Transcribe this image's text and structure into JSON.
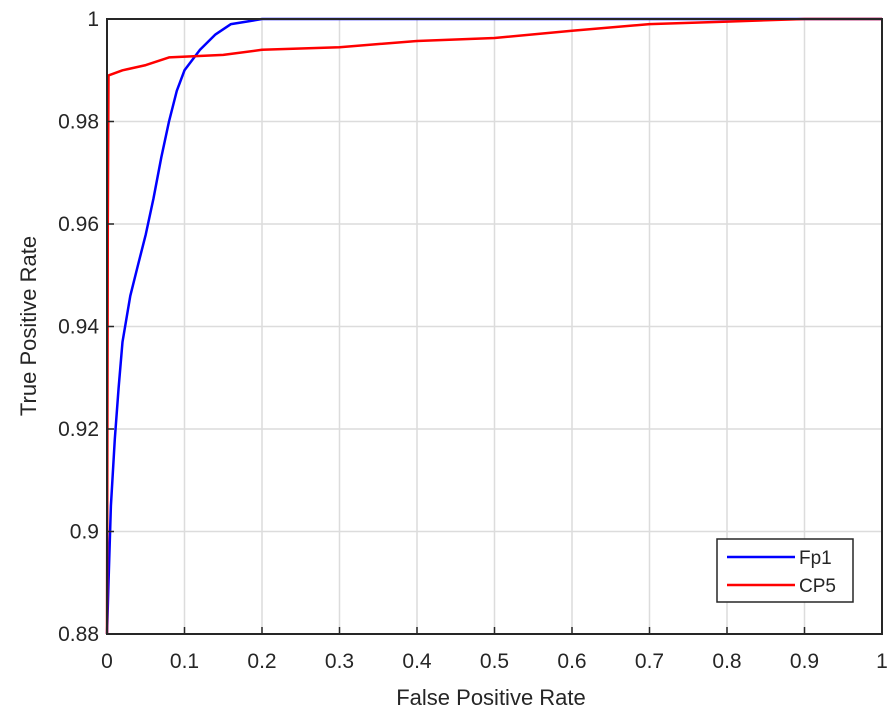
{
  "chart_data": {
    "type": "line",
    "title": "",
    "xlabel": "False Positive Rate",
    "ylabel": "True Positive Rate",
    "xlim": [
      0,
      1
    ],
    "ylim": [
      0.88,
      1
    ],
    "xticks": [
      "0",
      "0.1",
      "0.2",
      "0.3",
      "0.4",
      "0.5",
      "0.6",
      "0.7",
      "0.8",
      "0.9",
      "1"
    ],
    "yticks": [
      "0.88",
      "0.9",
      "0.92",
      "0.94",
      "0.96",
      "0.98",
      "1"
    ],
    "grid": true,
    "legend_position": "bottom-right",
    "series": [
      {
        "name": "Fp1",
        "color": "#0000ff",
        "points": [
          [
            0,
            0.88
          ],
          [
            0.002,
            0.89
          ],
          [
            0.005,
            0.905
          ],
          [
            0.01,
            0.918
          ],
          [
            0.015,
            0.928
          ],
          [
            0.02,
            0.937
          ],
          [
            0.03,
            0.946
          ],
          [
            0.04,
            0.952
          ],
          [
            0.05,
            0.958
          ],
          [
            0.06,
            0.965
          ],
          [
            0.07,
            0.973
          ],
          [
            0.08,
            0.98
          ],
          [
            0.09,
            0.986
          ],
          [
            0.1,
            0.99
          ],
          [
            0.12,
            0.994
          ],
          [
            0.14,
            0.997
          ],
          [
            0.16,
            0.999
          ],
          [
            0.18,
            0.9995
          ],
          [
            0.2,
            1.0
          ],
          [
            0.3,
            1.0
          ],
          [
            0.5,
            1.0
          ],
          [
            0.7,
            1.0
          ],
          [
            0.85,
            1.0
          ],
          [
            1.0,
            1.0
          ]
        ]
      },
      {
        "name": "CP5",
        "color": "#ff0000",
        "points": [
          [
            0,
            0.88
          ],
          [
            0.001,
            0.96
          ],
          [
            0.002,
            0.989
          ],
          [
            0.02,
            0.99
          ],
          [
            0.05,
            0.991
          ],
          [
            0.08,
            0.9925
          ],
          [
            0.15,
            0.993
          ],
          [
            0.2,
            0.994
          ],
          [
            0.3,
            0.9945
          ],
          [
            0.4,
            0.9957
          ],
          [
            0.5,
            0.9963
          ],
          [
            0.6,
            0.9977
          ],
          [
            0.7,
            0.999
          ],
          [
            0.8,
            0.9995
          ],
          [
            0.9,
            1.0
          ],
          [
            1.0,
            1.0
          ]
        ]
      }
    ]
  }
}
